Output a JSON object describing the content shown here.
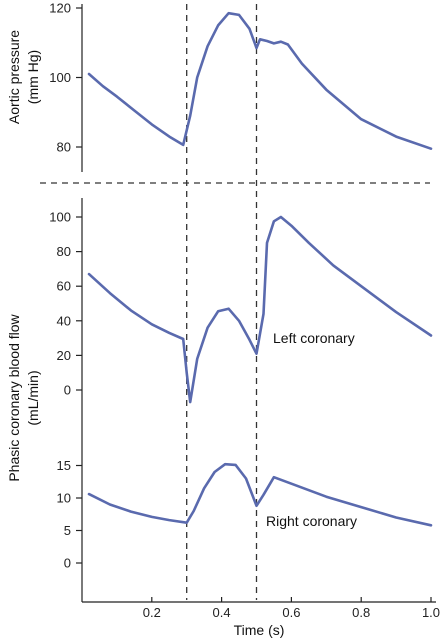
{
  "chart_data": {
    "type": "line",
    "x_axis": {
      "label": "Time (s)",
      "range": [
        0,
        1.0
      ],
      "ticks": [
        0.2,
        0.4,
        0.6,
        0.8,
        1.0
      ],
      "tick_labels": [
        "0.2",
        "0.4",
        "0.6",
        "0.8",
        "1.0"
      ]
    },
    "vertical_markers": [
      0.3,
      0.5
    ],
    "grid": false,
    "panels": [
      {
        "id": "aortic",
        "ylabel_lines": [
          "Aortic pressure",
          "(mm Hg)"
        ],
        "ylim": [
          72,
          122
        ],
        "ticks": [
          80,
          100,
          120
        ],
        "tick_labels": [
          "80",
          "100",
          "120"
        ],
        "series": [
          {
            "label": "",
            "points": [
              [
                0.02,
                101
              ],
              [
                0.06,
                97.5
              ],
              [
                0.1,
                94.5
              ],
              [
                0.15,
                90.5
              ],
              [
                0.2,
                86.5
              ],
              [
                0.25,
                83
              ],
              [
                0.29,
                80.6
              ],
              [
                0.31,
                89
              ],
              [
                0.33,
                100
              ],
              [
                0.36,
                109
              ],
              [
                0.39,
                115
              ],
              [
                0.42,
                118.5
              ],
              [
                0.45,
                118
              ],
              [
                0.48,
                114
              ],
              [
                0.5,
                108.5
              ],
              [
                0.51,
                111
              ],
              [
                0.53,
                110.5
              ],
              [
                0.55,
                109.8
              ],
              [
                0.57,
                110.3
              ],
              [
                0.59,
                109.5
              ],
              [
                0.63,
                104
              ],
              [
                0.7,
                96.5
              ],
              [
                0.8,
                88
              ],
              [
                0.9,
                83
              ],
              [
                1.0,
                79.5
              ]
            ]
          }
        ]
      },
      {
        "id": "left",
        "ylim": [
          -10,
          106
        ],
        "ticks": [
          0,
          20,
          40,
          60,
          80,
          100
        ],
        "tick_labels": [
          "0",
          "20",
          "40",
          "60",
          "80",
          "100"
        ],
        "series": [
          {
            "label": "Left coronary",
            "points": [
              [
                0.02,
                67
              ],
              [
                0.08,
                56
              ],
              [
                0.14,
                46
              ],
              [
                0.2,
                38
              ],
              [
                0.25,
                33
              ],
              [
                0.29,
                29.5
              ],
              [
                0.3,
                10
              ],
              [
                0.31,
                -7
              ],
              [
                0.33,
                18
              ],
              [
                0.36,
                36
              ],
              [
                0.39,
                45.5
              ],
              [
                0.42,
                47
              ],
              [
                0.45,
                40
              ],
              [
                0.48,
                29
              ],
              [
                0.5,
                21
              ],
              [
                0.52,
                44
              ],
              [
                0.53,
                85
              ],
              [
                0.55,
                97.5
              ],
              [
                0.57,
                100
              ],
              [
                0.6,
                95
              ],
              [
                0.65,
                85
              ],
              [
                0.72,
                72
              ],
              [
                0.8,
                60
              ],
              [
                0.9,
                45
              ],
              [
                1.0,
                31.5
              ]
            ]
          }
        ]
      },
      {
        "id": "right",
        "ylim": [
          -3,
          17
        ],
        "ticks": [
          0,
          5,
          10,
          15
        ],
        "tick_labels": [
          "0",
          "5",
          "10",
          "15"
        ],
        "series": [
          {
            "label": "Right coronary",
            "points": [
              [
                0.02,
                10.6
              ],
              [
                0.08,
                9
              ],
              [
                0.14,
                7.9
              ],
              [
                0.2,
                7.1
              ],
              [
                0.25,
                6.6
              ],
              [
                0.3,
                6.2
              ],
              [
                0.32,
                8
              ],
              [
                0.35,
                11.5
              ],
              [
                0.38,
                14
              ],
              [
                0.41,
                15.2
              ],
              [
                0.44,
                15.1
              ],
              [
                0.47,
                13
              ],
              [
                0.5,
                8.8
              ],
              [
                0.52,
                10.5
              ],
              [
                0.55,
                13.2
              ],
              [
                0.6,
                12.2
              ],
              [
                0.7,
                10.2
              ],
              [
                0.8,
                8.6
              ],
              [
                0.9,
                7
              ],
              [
                1.0,
                5.8
              ]
            ]
          }
        ]
      }
    ],
    "shared_ylabel_lines": [
      "Phasic coronary blood flow",
      "(mL/min)"
    ]
  }
}
